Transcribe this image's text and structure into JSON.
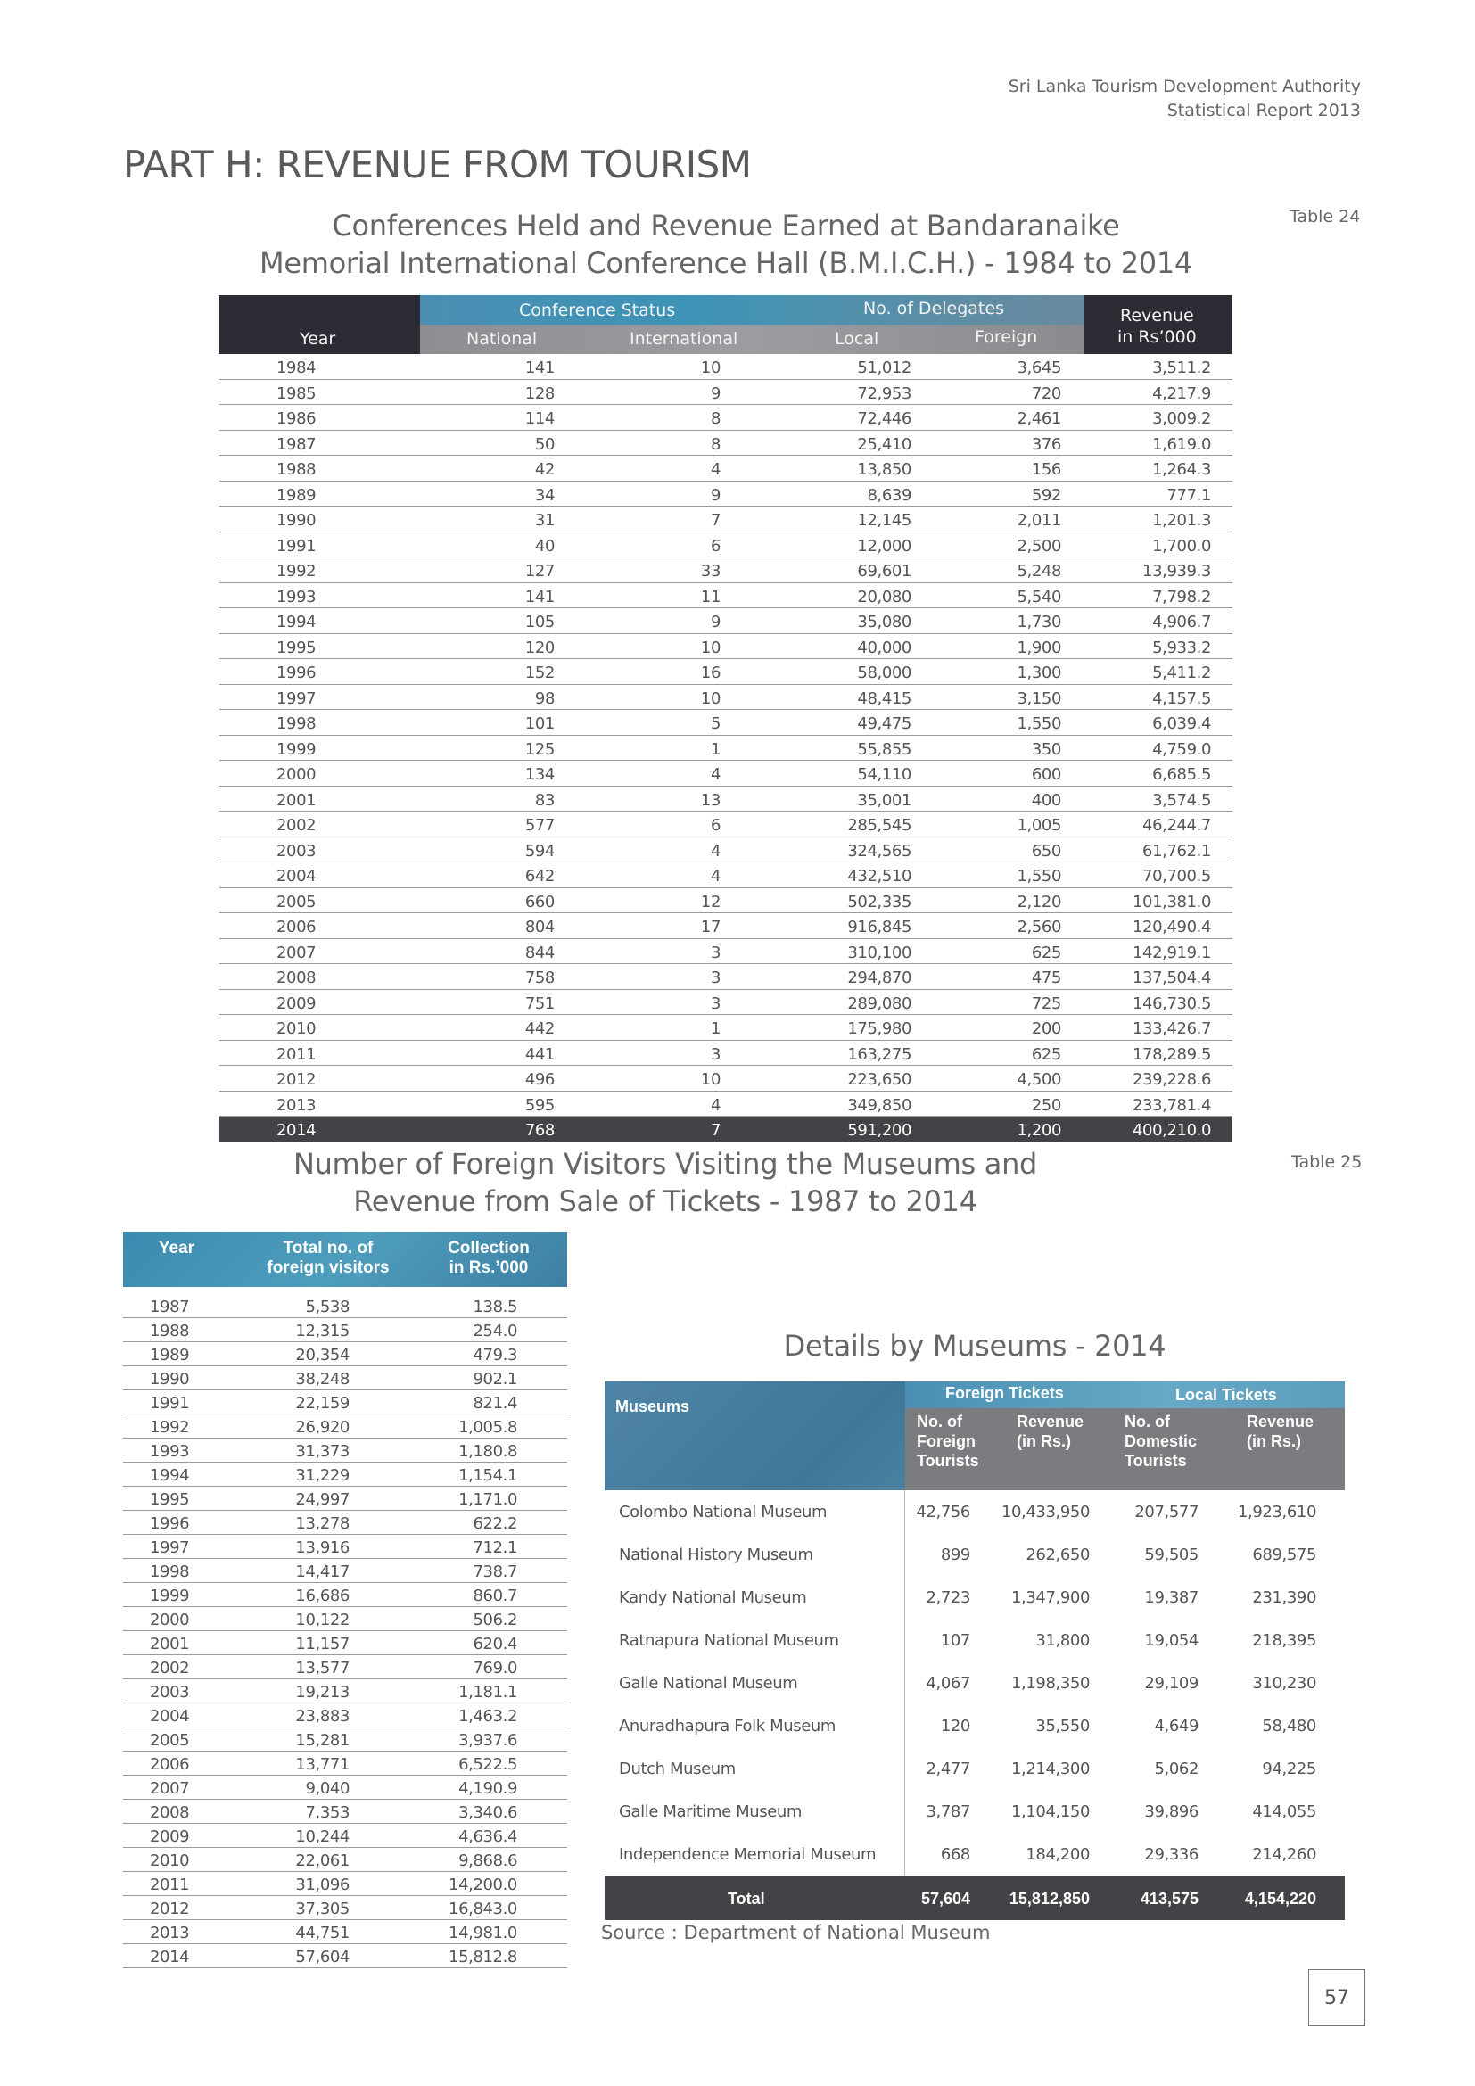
{
  "header": {
    "line1": "Sri Lanka Tourism Development Authority",
    "line2": "Statistical Report 2013"
  },
  "part_title": "PART H: REVENUE FROM TOURISM",
  "table24": {
    "title_line1": "Conferences Held and Revenue Earned at Bandaranaike",
    "title_line2": "Memorial International Conference Hall (B.M.I.C.H.) - 1984 to 2014",
    "label": "Table 24",
    "headers": {
      "year": "Year",
      "conference_status": "Conference Status",
      "national": "National",
      "international": "International",
      "delegates": "No. of Delegates",
      "local": "Local",
      "foreign": "Foreign",
      "revenue1": "Revenue",
      "revenue2": "in Rs’000"
    },
    "rows": [
      [
        "1984",
        "141",
        "10",
        "51,012",
        "3,645",
        "3,511.2"
      ],
      [
        "1985",
        "128",
        "9",
        "72,953",
        "720",
        "4,217.9"
      ],
      [
        "1986",
        "114",
        "8",
        "72,446",
        "2,461",
        "3,009.2"
      ],
      [
        "1987",
        "50",
        "8",
        "25,410",
        "376",
        "1,619.0"
      ],
      [
        "1988",
        "42",
        "4",
        "13,850",
        "156",
        "1,264.3"
      ],
      [
        "1989",
        "34",
        "9",
        "8,639",
        "592",
        "777.1"
      ],
      [
        "1990",
        "31",
        "7",
        "12,145",
        "2,011",
        "1,201.3"
      ],
      [
        "1991",
        "40",
        "6",
        "12,000",
        "2,500",
        "1,700.0"
      ],
      [
        "1992",
        "127",
        "33",
        "69,601",
        "5,248",
        "13,939.3"
      ],
      [
        "1993",
        "141",
        "11",
        "20,080",
        "5,540",
        "7,798.2"
      ],
      [
        "1994",
        "105",
        "9",
        "35,080",
        "1,730",
        "4,906.7"
      ],
      [
        "1995",
        "120",
        "10",
        "40,000",
        "1,900",
        "5,933.2"
      ],
      [
        "1996",
        "152",
        "16",
        "58,000",
        "1,300",
        "5,411.2"
      ],
      [
        "1997",
        "98",
        "10",
        "48,415",
        "3,150",
        "4,157.5"
      ],
      [
        "1998",
        "101",
        "5",
        "49,475",
        "1,550",
        "6,039.4"
      ],
      [
        "1999",
        "125",
        "1",
        "55,855",
        "350",
        "4,759.0"
      ],
      [
        "2000",
        "134",
        "4",
        "54,110",
        "600",
        "6,685.5"
      ],
      [
        "2001",
        "83",
        "13",
        "35,001",
        "400",
        "3,574.5"
      ],
      [
        "2002",
        "577",
        "6",
        "285,545",
        "1,005",
        "46,244.7"
      ],
      [
        "2003",
        "594",
        "4",
        "324,565",
        "650",
        "61,762.1"
      ],
      [
        "2004",
        "642",
        "4",
        "432,510",
        "1,550",
        "70,700.5"
      ],
      [
        "2005",
        "660",
        "12",
        "502,335",
        "2,120",
        "101,381.0"
      ],
      [
        "2006",
        "804",
        "17",
        "916,845",
        "2,560",
        "120,490.4"
      ],
      [
        "2007",
        "844",
        "3",
        "310,100",
        "625",
        "142,919.1"
      ],
      [
        "2008",
        "758",
        "3",
        "294,870",
        "475",
        "137,504.4"
      ],
      [
        "2009",
        "751",
        "3",
        "289,080",
        "725",
        "146,730.5"
      ],
      [
        "2010",
        "442",
        "1",
        "175,980",
        "200",
        "133,426.7"
      ],
      [
        "2011",
        "441",
        "3",
        "163,275",
        "625",
        "178,289.5"
      ],
      [
        "2012",
        "496",
        "10",
        "223,650",
        "4,500",
        "239,228.6"
      ],
      [
        "2013",
        "595",
        "4",
        "349,850",
        "250",
        "233,781.4"
      ],
      [
        "2014",
        "768",
        "7",
        "591,200",
        "1,200",
        "400,210.0"
      ]
    ]
  },
  "table25": {
    "title_line1": "Number of Foreign Visitors Visiting the Museums and",
    "title_line2": "Revenue from Sale of Tickets - 1987 to 2014",
    "label": "Table 25",
    "headers": {
      "year": "Year",
      "visitors1": "Total no. of",
      "visitors2": "foreign visitors",
      "collection1": "Collection",
      "collection2": "in Rs.’000"
    },
    "rows": [
      [
        "1987",
        "5,538",
        "138.5"
      ],
      [
        "1988",
        "12,315",
        "254.0"
      ],
      [
        "1989",
        "20,354",
        "479.3"
      ],
      [
        "1990",
        "38,248",
        "902.1"
      ],
      [
        "1991",
        "22,159",
        "821.4"
      ],
      [
        "1992",
        "26,920",
        "1,005.8"
      ],
      [
        "1993",
        "31,373",
        "1,180.8"
      ],
      [
        "1994",
        "31,229",
        "1,154.1"
      ],
      [
        "1995",
        "24,997",
        "1,171.0"
      ],
      [
        "1996",
        "13,278",
        "622.2"
      ],
      [
        "1997",
        "13,916",
        "712.1"
      ],
      [
        "1998",
        "14,417",
        "738.7"
      ],
      [
        "1999",
        "16,686",
        "860.7"
      ],
      [
        "2000",
        "10,122",
        "506.2"
      ],
      [
        "2001",
        "11,157",
        "620.4"
      ],
      [
        "2002",
        "13,577",
        "769.0"
      ],
      [
        "2003",
        "19,213",
        "1,181.1"
      ],
      [
        "2004",
        "23,883",
        "1,463.2"
      ],
      [
        "2005",
        "15,281",
        "3,937.6"
      ],
      [
        "2006",
        "13,771",
        "6,522.5"
      ],
      [
        "2007",
        "9,040",
        "4,190.9"
      ],
      [
        "2008",
        "7,353",
        "3,340.6"
      ],
      [
        "2009",
        "10,244",
        "4,636.4"
      ],
      [
        "2010",
        "22,061",
        "9,868.6"
      ],
      [
        "2011",
        "31,096",
        "14,200.0"
      ],
      [
        "2012",
        "37,305",
        "16,843.0"
      ],
      [
        "2013",
        "44,751",
        "14,981.0"
      ],
      [
        "2014",
        "57,604",
        "15,812.8"
      ]
    ]
  },
  "museums": {
    "title": "Details by Museums - 2014",
    "headers": {
      "museums": "Museums",
      "foreign_tickets": "Foreign Tickets",
      "local_tickets": "Local Tickets",
      "f_count": "No. of Foreign Tourists",
      "f_rev": "Revenue (in Rs.)",
      "l_count": "No. of Domestic Tourists",
      "l_rev": "Revenue (in Rs.)"
    },
    "rows": [
      [
        "Colombo National Museum",
        "42,756",
        "10,433,950",
        "207,577",
        "1,923,610"
      ],
      [
        "National History Museum",
        "899",
        "262,650",
        "59,505",
        "689,575"
      ],
      [
        "Kandy National Museum",
        "2,723",
        "1,347,900",
        "19,387",
        "231,390"
      ],
      [
        "Ratnapura National Museum",
        "107",
        "31,800",
        "19,054",
        "218,395"
      ],
      [
        "Galle National Museum",
        "4,067",
        "1,198,350",
        "29,109",
        "310,230"
      ],
      [
        "Anuradhapura Folk Museum",
        "120",
        "35,550",
        "4,649",
        "58,480"
      ],
      [
        "Dutch Museum",
        "2,477",
        "1,214,300",
        "5,062",
        "94,225"
      ],
      [
        "Galle Maritime Museum",
        "3,787",
        "1,104,150",
        "39,896",
        "414,055"
      ],
      [
        "Independence Memorial Museum",
        "668",
        "184,200",
        "29,336",
        "214,260"
      ]
    ],
    "total": [
      "Total",
      "57,604",
      "15,812,850",
      "413,575",
      "4,154,220"
    ],
    "source": "Source : Department of National Museum"
  },
  "page_number": "57"
}
